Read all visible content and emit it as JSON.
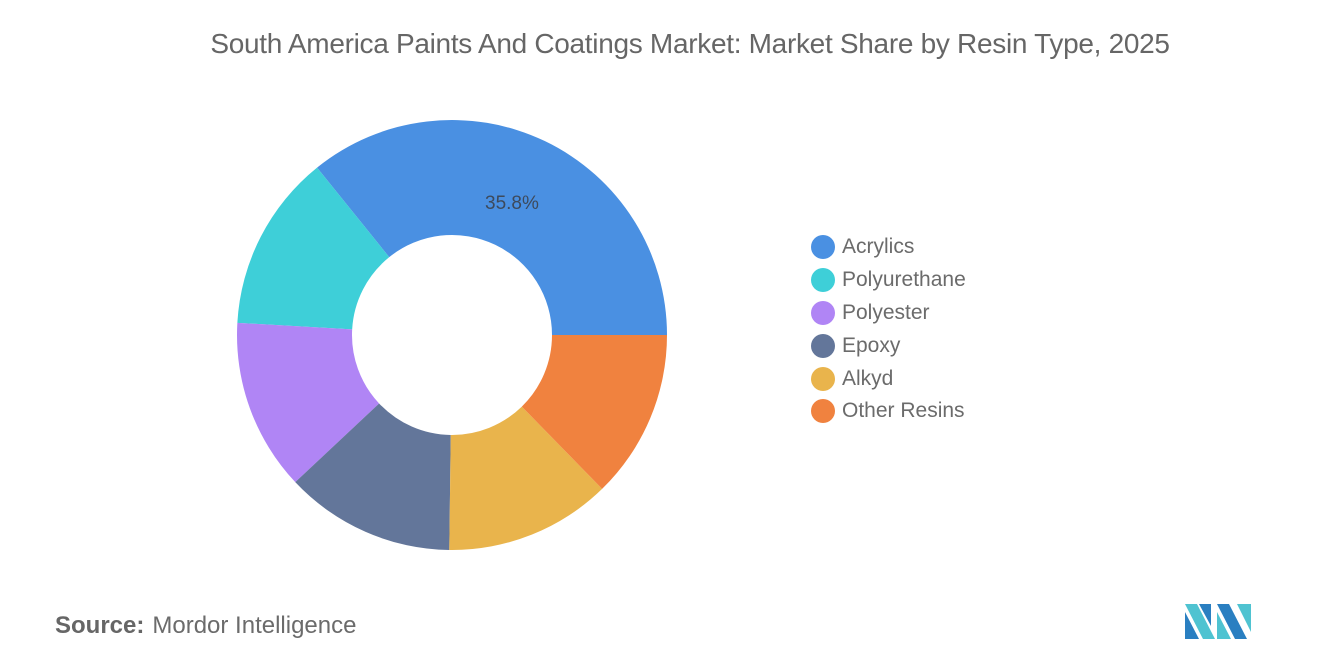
{
  "title": "South America Paints And Coatings Market: Market Share by Resin Type, 2025",
  "source": {
    "label": "Source:",
    "value": "Mordor Intelligence"
  },
  "logo": {
    "name": "mordor-intelligence-logo",
    "colors": [
      "#4fc3d1",
      "#2a7fc1"
    ]
  },
  "chart_data": {
    "type": "pie",
    "subtype": "donut",
    "title": "South America Paints And Coatings Market: Market Share by Resin Type, 2025",
    "categories": [
      "Acrylics",
      "Polyurethane",
      "Polyester",
      "Epoxy",
      "Alkyd",
      "Other Resins"
    ],
    "values": [
      35.8,
      13.3,
      12.9,
      12.8,
      12.5,
      12.7
    ],
    "colors": [
      "#4a90e2",
      "#3ecfd8",
      "#b085f5",
      "#63769a",
      "#e9b44c",
      "#f0823f"
    ],
    "data_labels": [
      {
        "category": "Acrylics",
        "text": "35.8%"
      }
    ],
    "start_angle_deg": 0,
    "direction": "counterclockwise",
    "inner_radius_ratio": 0.465,
    "legend_position": "right",
    "unit": "%"
  },
  "legend": {
    "items": [
      {
        "label": "Acrylics",
        "color": "#4a90e2"
      },
      {
        "label": "Polyurethane",
        "color": "#3ecfd8"
      },
      {
        "label": "Polyester",
        "color": "#b085f5"
      },
      {
        "label": "Epoxy",
        "color": "#63769a"
      },
      {
        "label": "Alkyd",
        "color": "#e9b44c"
      },
      {
        "label": "Other Resins",
        "color": "#f0823f"
      }
    ]
  },
  "labels": {
    "acrylics": "35.8%"
  }
}
